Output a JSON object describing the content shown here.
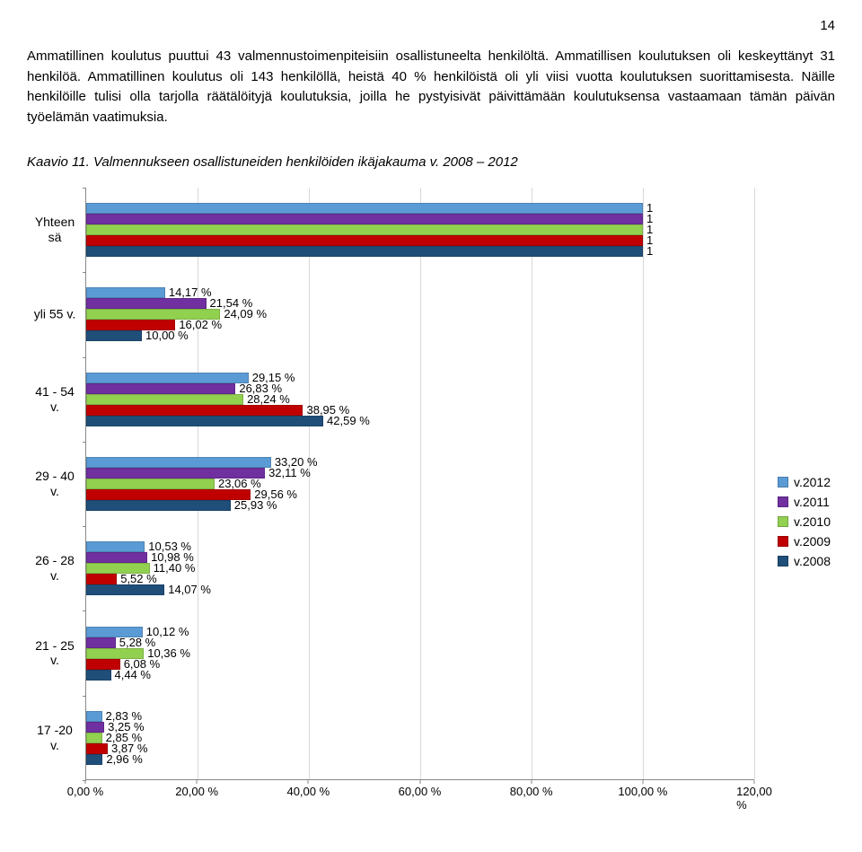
{
  "page_number": "14",
  "intro": "Ammatillinen koulutus puuttui 43 valmennustoimenpiteisiin osallistuneelta henkilöltä. Ammatillisen koulutuksen oli keskeyttänyt 31 henkilöä. Ammatillinen koulutus oli 143 henkilöllä, heistä 40 % henkilöistä oli yli viisi vuotta koulutuksen suorittamisesta. Näille henkilöille tulisi olla tarjolla räätälöityjä koulutuksia, joilla he pystyisivät päivittämään koulutuksensa vastaamaan tämän päivän työelämän vaatimuksia.",
  "caption": "Kaavio 11. Valmennukseen osallistuneiden henkilöiden ikäjakauma v. 2008 – 2012",
  "chart": {
    "type": "horizontal-bar-grouped",
    "xlim": [
      0,
      120
    ],
    "xstep": 20,
    "x_suffix": " %",
    "x_decimal": ",00",
    "series": [
      {
        "name": "v.2012",
        "color": "#5b9bd5"
      },
      {
        "name": "v.2011",
        "color": "#7030a0"
      },
      {
        "name": "v.2010",
        "color": "#92d050"
      },
      {
        "name": "v.2009",
        "color": "#c00000"
      },
      {
        "name": "v.2008",
        "color": "#1f4e79"
      }
    ],
    "categories": [
      {
        "label": "Yhteen\nsä",
        "bars": [
          {
            "series": 0,
            "value": 100,
            "label": "1"
          },
          {
            "series": 1,
            "value": 100,
            "label": "1"
          },
          {
            "series": 2,
            "value": 100,
            "label": "1"
          },
          {
            "series": 3,
            "value": 100,
            "label": "1"
          },
          {
            "series": 4,
            "value": 100,
            "label": "1"
          }
        ]
      },
      {
        "label": "yli 55 v.",
        "bars": [
          {
            "series": 0,
            "value": 14.17,
            "label": "14,17 %"
          },
          {
            "series": 1,
            "value": 21.54,
            "label": "21,54 %"
          },
          {
            "series": 2,
            "value": 24.09,
            "label": "24,09 %"
          },
          {
            "series": 3,
            "value": 16.02,
            "label": "16,02 %"
          },
          {
            "series": 4,
            "value": 10.0,
            "label": "10,00 %"
          }
        ]
      },
      {
        "label": "41 - 54\nv.",
        "bars": [
          {
            "series": 0,
            "value": 29.15,
            "label": "29,15 %"
          },
          {
            "series": 1,
            "value": 26.83,
            "label": "26,83 %"
          },
          {
            "series": 2,
            "value": 28.24,
            "label": "28,24 %"
          },
          {
            "series": 3,
            "value": 38.95,
            "label": "38,95 %"
          },
          {
            "series": 4,
            "value": 42.59,
            "label": "42,59 %"
          }
        ]
      },
      {
        "label": "29 - 40\nv.",
        "bars": [
          {
            "series": 0,
            "value": 33.2,
            "label": "33,20 %"
          },
          {
            "series": 1,
            "value": 32.11,
            "label": "32,11 %"
          },
          {
            "series": 2,
            "value": 23.06,
            "label": "23,06 %"
          },
          {
            "series": 3,
            "value": 29.56,
            "label": "29,56 %"
          },
          {
            "series": 4,
            "value": 25.93,
            "label": "25,93 %"
          }
        ]
      },
      {
        "label": "26 - 28\nv.",
        "bars": [
          {
            "series": 0,
            "value": 10.53,
            "label": "10,53 %"
          },
          {
            "series": 1,
            "value": 10.98,
            "label": "10,98 %"
          },
          {
            "series": 2,
            "value": 11.4,
            "label": "11,40 %"
          },
          {
            "series": 3,
            "value": 5.52,
            "label": "5,52 %"
          },
          {
            "series": 4,
            "value": 14.07,
            "label": "14,07 %"
          }
        ]
      },
      {
        "label": "21 - 25\nv.",
        "bars": [
          {
            "series": 0,
            "value": 10.12,
            "label": "10,12 %"
          },
          {
            "series": 1,
            "value": 5.28,
            "label": "5,28 %"
          },
          {
            "series": 2,
            "value": 10.36,
            "label": "10,36 %"
          },
          {
            "series": 3,
            "value": 6.08,
            "label": "6,08 %"
          },
          {
            "series": 4,
            "value": 4.44,
            "label": "4,44 %"
          }
        ]
      },
      {
        "label": "17 -20\nv.",
        "bars": [
          {
            "series": 0,
            "value": 2.83,
            "label": "2,83 %"
          },
          {
            "series": 1,
            "value": 3.25,
            "label": "3,25 %"
          },
          {
            "series": 2,
            "value": 2.85,
            "label": "2,85 %"
          },
          {
            "series": 3,
            "value": 3.87,
            "label": "3,87 %"
          },
          {
            "series": 4,
            "value": 2.96,
            "label": "2,96 %"
          }
        ]
      }
    ]
  }
}
